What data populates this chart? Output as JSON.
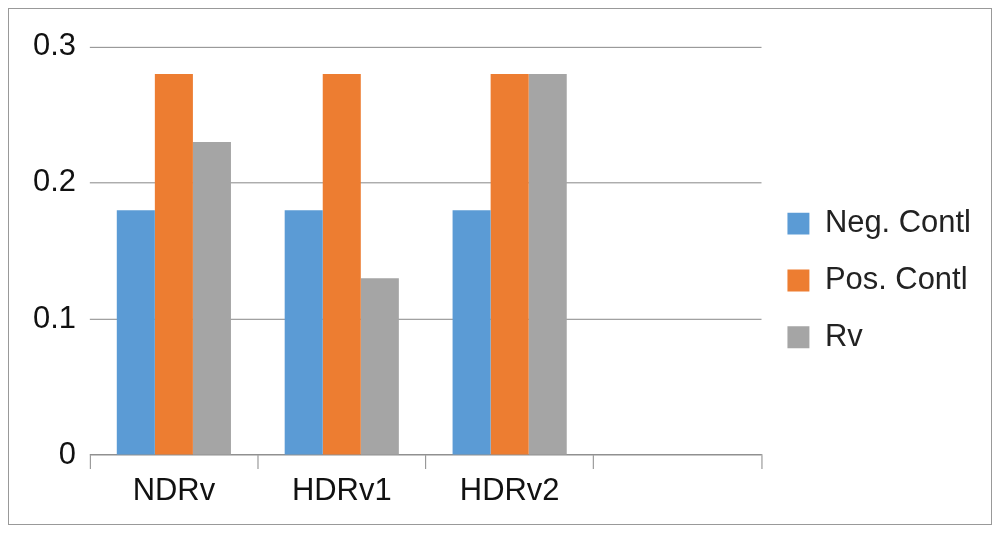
{
  "chart_data": {
    "type": "bar",
    "categories": [
      "NDRv",
      "HDRv1",
      "HDRv2",
      null
    ],
    "series": [
      {
        "name": "Neg. Contl",
        "color": "#5b9bd5",
        "values": [
          0.18,
          0.18,
          0.18,
          null
        ]
      },
      {
        "name": "Pos. Contl",
        "color": "#ed7d31",
        "values": [
          0.28,
          0.28,
          0.28,
          null
        ]
      },
      {
        "name": "Rv",
        "color": "#a5a5a5",
        "values": [
          0.23,
          0.13,
          0.28,
          null
        ]
      }
    ],
    "ylim": [
      0,
      0.3
    ],
    "yticks": [
      0,
      0.1,
      0.2,
      0.3
    ],
    "grid": "y",
    "legend": "right"
  }
}
